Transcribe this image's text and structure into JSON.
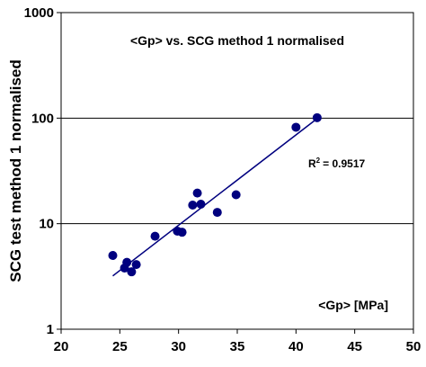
{
  "chart_data": {
    "type": "scatter",
    "title": "<Gp> vs. SCG method 1 normalised",
    "xlabel": "<Gp> [MPa]",
    "ylabel": "SCG test method 1 normalised",
    "xlim": [
      20,
      50
    ],
    "ylim": [
      1,
      1000
    ],
    "yscale": "log",
    "x_ticks": [
      "20",
      "25",
      "30",
      "35",
      "40",
      "45",
      "50"
    ],
    "y_ticks": [
      "1",
      "10",
      "100",
      "1000"
    ],
    "grid": "horizontal",
    "marker_color": "#00007f",
    "trendline_color": "#00007f",
    "r_squared_label": "R",
    "r_squared_sup": "2",
    "r_squared_value": "= 0.9517",
    "trendline": {
      "x": [
        24.4,
        41.8
      ],
      "y": [
        3.2,
        99
      ]
    },
    "points": [
      {
        "x": 24.4,
        "y": 5.0
      },
      {
        "x": 25.4,
        "y": 3.8
      },
      {
        "x": 25.6,
        "y": 4.3
      },
      {
        "x": 26.0,
        "y": 3.5
      },
      {
        "x": 26.4,
        "y": 4.1
      },
      {
        "x": 28.0,
        "y": 7.6
      },
      {
        "x": 29.9,
        "y": 8.5
      },
      {
        "x": 30.3,
        "y": 8.3
      },
      {
        "x": 31.2,
        "y": 15.0
      },
      {
        "x": 31.6,
        "y": 19.5
      },
      {
        "x": 31.9,
        "y": 15.3
      },
      {
        "x": 33.3,
        "y": 12.8
      },
      {
        "x": 34.9,
        "y": 18.8
      },
      {
        "x": 40.0,
        "y": 82
      },
      {
        "x": 41.8,
        "y": 101
      }
    ]
  }
}
